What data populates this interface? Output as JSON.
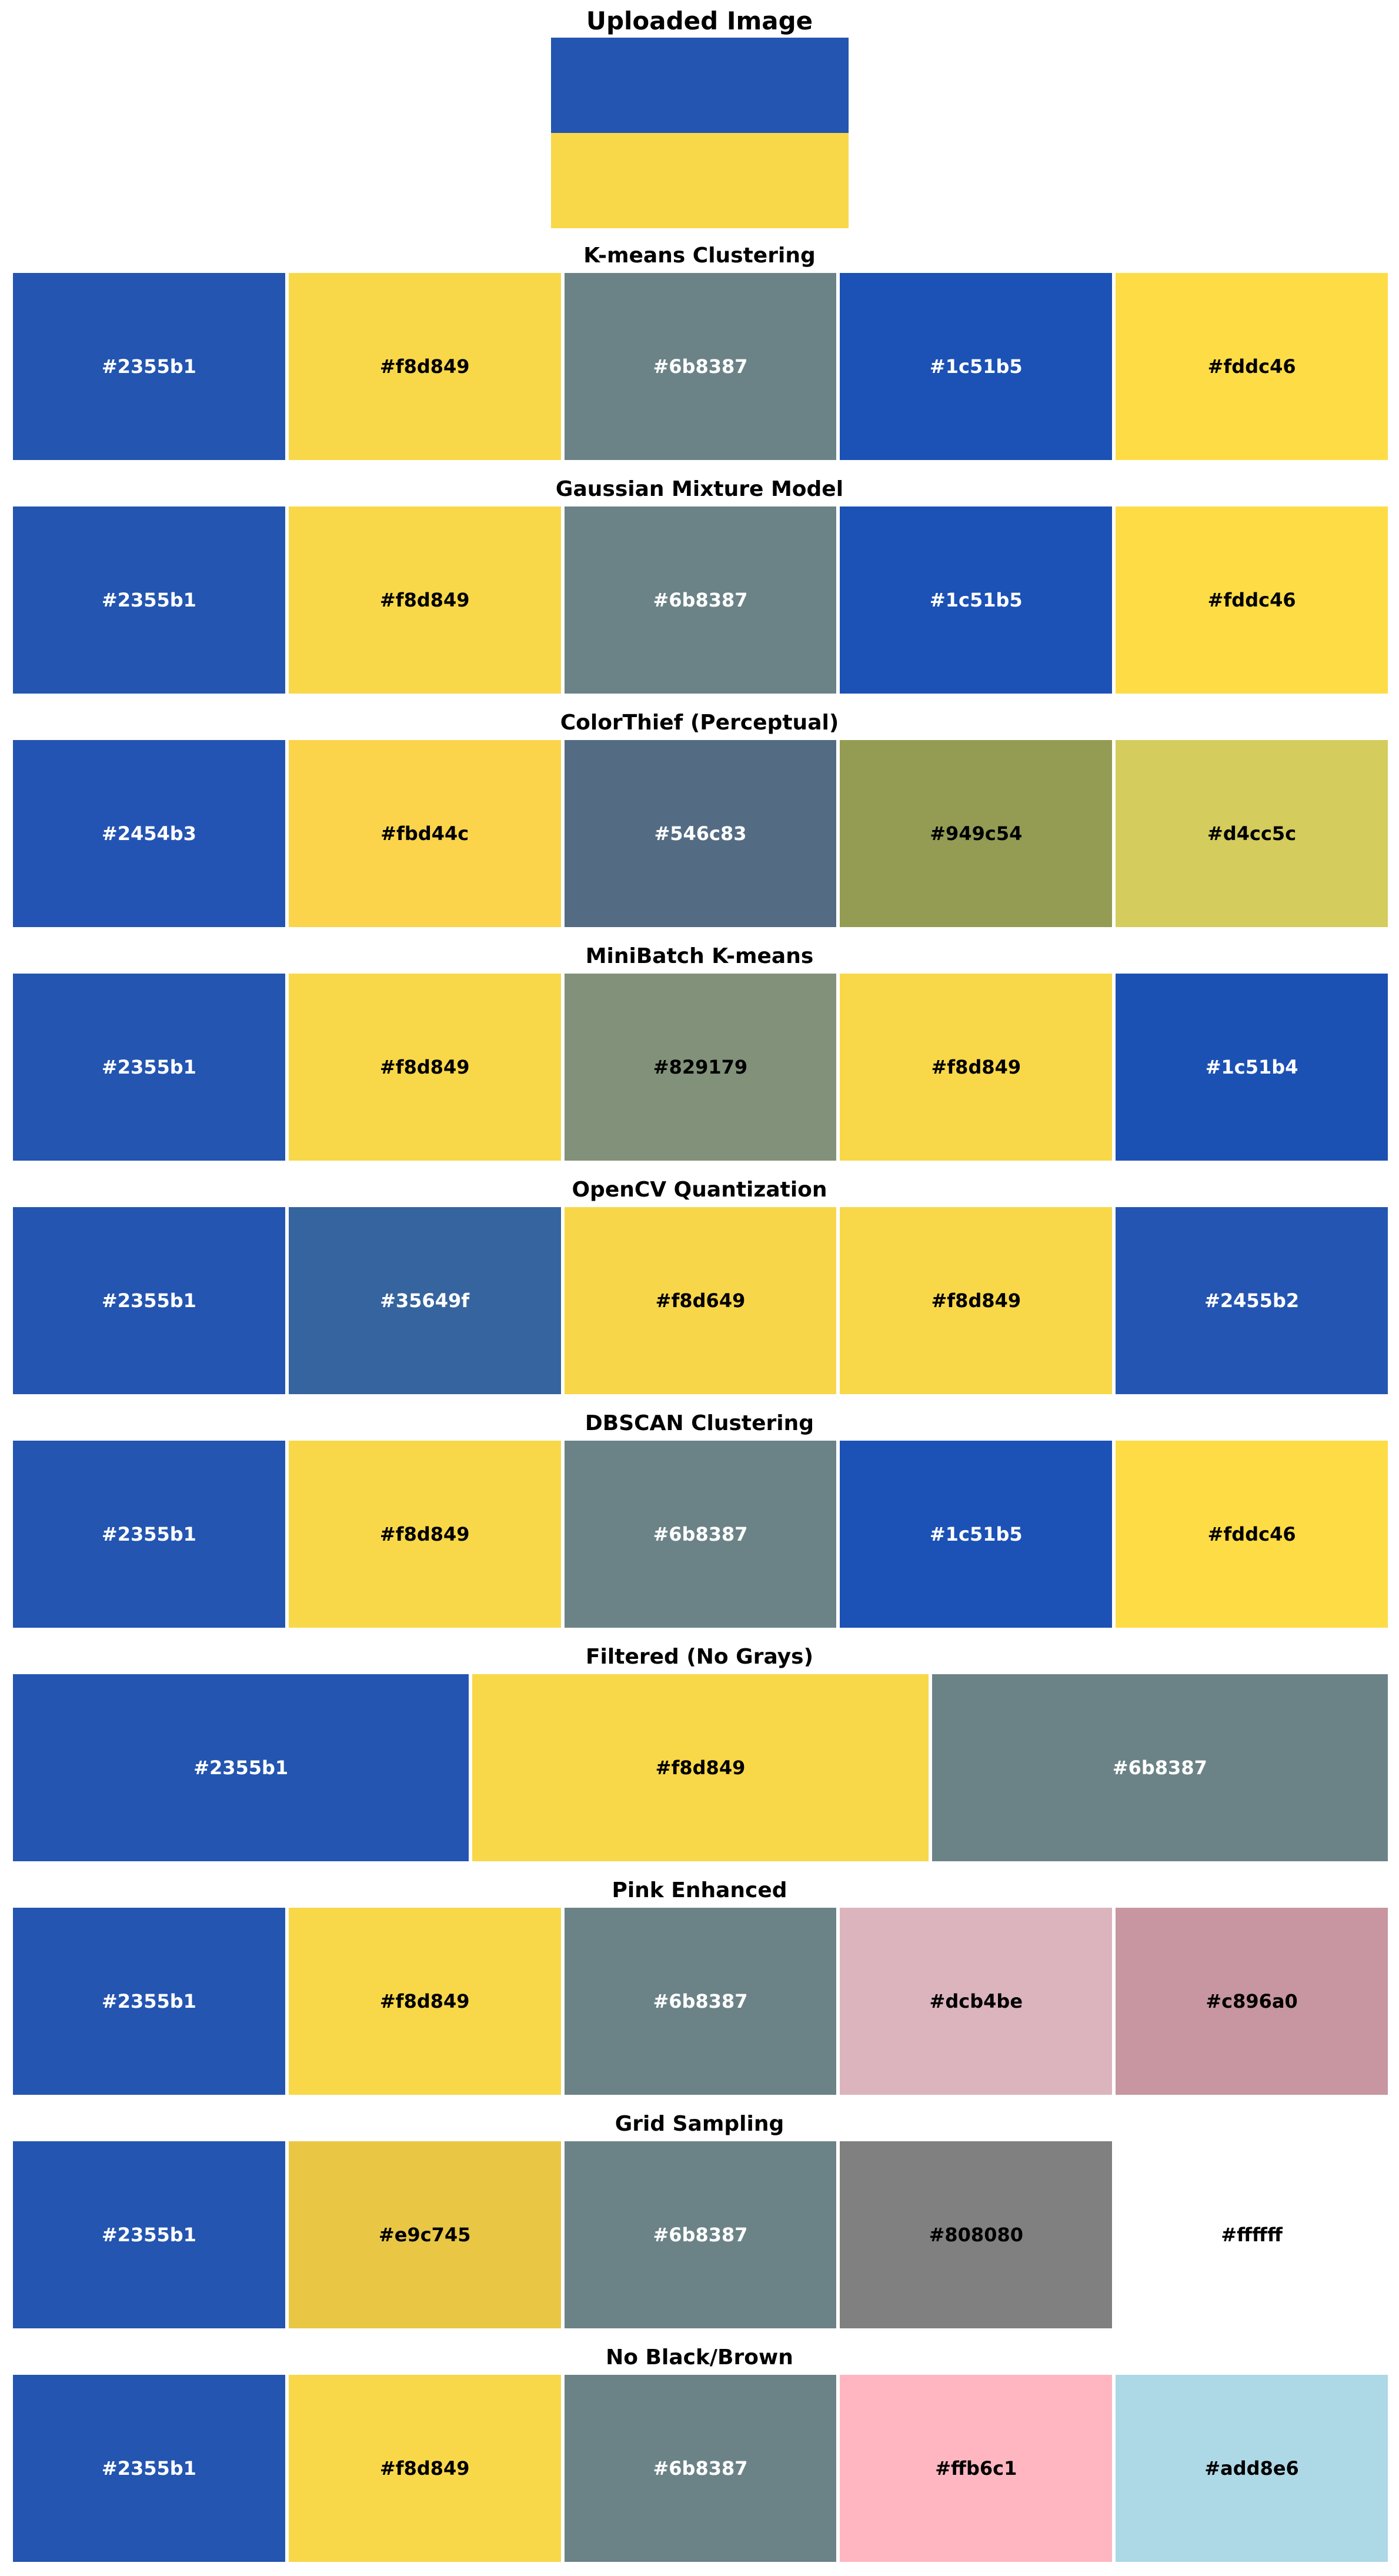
{
  "main_title": "Uploaded Image",
  "flag": {
    "top_color": "#2355b1",
    "bottom_color": "#f8d849"
  },
  "chart_data": {
    "type": "table",
    "title": "Uploaded Image",
    "sections": [
      {
        "title": "K-means Clustering",
        "swatches": [
          {
            "hex": "#2355b1",
            "label": "#2355b1",
            "text_color": "#ffffff"
          },
          {
            "hex": "#f8d849",
            "label": "#f8d849",
            "text_color": "#000000"
          },
          {
            "hex": "#6b8387",
            "label": "#6b8387",
            "text_color": "#ffffff"
          },
          {
            "hex": "#1c51b5",
            "label": "#1c51b5",
            "text_color": "#ffffff"
          },
          {
            "hex": "#fddc46",
            "label": "#fddc46",
            "text_color": "#000000"
          }
        ]
      },
      {
        "title": "Gaussian Mixture Model",
        "swatches": [
          {
            "hex": "#2355b1",
            "label": "#2355b1",
            "text_color": "#ffffff"
          },
          {
            "hex": "#f8d849",
            "label": "#f8d849",
            "text_color": "#000000"
          },
          {
            "hex": "#6b8387",
            "label": "#6b8387",
            "text_color": "#ffffff"
          },
          {
            "hex": "#1c51b5",
            "label": "#1c51b5",
            "text_color": "#ffffff"
          },
          {
            "hex": "#fddc46",
            "label": "#fddc46",
            "text_color": "#000000"
          }
        ]
      },
      {
        "title": "ColorThief (Perceptual)",
        "swatches": [
          {
            "hex": "#2454b3",
            "label": "#2454b3",
            "text_color": "#ffffff"
          },
          {
            "hex": "#fbd44c",
            "label": "#fbd44c",
            "text_color": "#000000"
          },
          {
            "hex": "#546c83",
            "label": "#546c83",
            "text_color": "#ffffff"
          },
          {
            "hex": "#949c54",
            "label": "#949c54",
            "text_color": "#000000"
          },
          {
            "hex": "#d4cc5c",
            "label": "#d4cc5c",
            "text_color": "#000000"
          }
        ]
      },
      {
        "title": "MiniBatch K-means",
        "swatches": [
          {
            "hex": "#2355b1",
            "label": "#2355b1",
            "text_color": "#ffffff"
          },
          {
            "hex": "#f8d849",
            "label": "#f8d849",
            "text_color": "#000000"
          },
          {
            "hex": "#829179",
            "label": "#829179",
            "text_color": "#000000"
          },
          {
            "hex": "#f8d849",
            "label": "#f8d849",
            "text_color": "#000000"
          },
          {
            "hex": "#1c51b4",
            "label": "#1c51b4",
            "text_color": "#ffffff"
          }
        ]
      },
      {
        "title": "OpenCV Quantization",
        "swatches": [
          {
            "hex": "#2355b1",
            "label": "#2355b1",
            "text_color": "#ffffff"
          },
          {
            "hex": "#35649f",
            "label": "#35649f",
            "text_color": "#ffffff"
          },
          {
            "hex": "#f8d649",
            "label": "#f8d649",
            "text_color": "#000000"
          },
          {
            "hex": "#f8d849",
            "label": "#f8d849",
            "text_color": "#000000"
          },
          {
            "hex": "#2455b2",
            "label": "#2455b2",
            "text_color": "#ffffff"
          }
        ]
      },
      {
        "title": "DBSCAN Clustering",
        "swatches": [
          {
            "hex": "#2355b1",
            "label": "#2355b1",
            "text_color": "#ffffff"
          },
          {
            "hex": "#f8d849",
            "label": "#f8d849",
            "text_color": "#000000"
          },
          {
            "hex": "#6b8387",
            "label": "#6b8387",
            "text_color": "#ffffff"
          },
          {
            "hex": "#1c51b5",
            "label": "#1c51b5",
            "text_color": "#ffffff"
          },
          {
            "hex": "#fddc46",
            "label": "#fddc46",
            "text_color": "#000000"
          }
        ]
      },
      {
        "title": "Filtered (No Grays)",
        "swatches": [
          {
            "hex": "#2355b1",
            "label": "#2355b1",
            "text_color": "#ffffff"
          },
          {
            "hex": "#f8d849",
            "label": "#f8d849",
            "text_color": "#000000"
          },
          {
            "hex": "#6b8387",
            "label": "#6b8387",
            "text_color": "#ffffff"
          }
        ]
      },
      {
        "title": "Pink Enhanced",
        "swatches": [
          {
            "hex": "#2355b1",
            "label": "#2355b1",
            "text_color": "#ffffff"
          },
          {
            "hex": "#f8d849",
            "label": "#f8d849",
            "text_color": "#000000"
          },
          {
            "hex": "#6b8387",
            "label": "#6b8387",
            "text_color": "#ffffff"
          },
          {
            "hex": "#dcb4be",
            "label": "#dcb4be",
            "text_color": "#000000"
          },
          {
            "hex": "#c896a0",
            "label": "#c896a0",
            "text_color": "#000000"
          }
        ]
      },
      {
        "title": "Grid Sampling",
        "swatches": [
          {
            "hex": "#2355b1",
            "label": "#2355b1",
            "text_color": "#ffffff"
          },
          {
            "hex": "#e9c745",
            "label": "#e9c745",
            "text_color": "#000000"
          },
          {
            "hex": "#6b8387",
            "label": "#6b8387",
            "text_color": "#ffffff"
          },
          {
            "hex": "#808080",
            "label": "#808080",
            "text_color": "#000000"
          },
          {
            "hex": "#ffffff",
            "label": "#ffffff",
            "text_color": "#000000"
          }
        ]
      },
      {
        "title": "No Black/Brown",
        "swatches": [
          {
            "hex": "#2355b1",
            "label": "#2355b1",
            "text_color": "#ffffff"
          },
          {
            "hex": "#f8d849",
            "label": "#f8d849",
            "text_color": "#000000"
          },
          {
            "hex": "#6b8387",
            "label": "#6b8387",
            "text_color": "#ffffff"
          },
          {
            "hex": "#ffb6c1",
            "label": "#ffb6c1",
            "text_color": "#000000"
          },
          {
            "hex": "#add8e6",
            "label": "#add8e6",
            "text_color": "#000000"
          }
        ]
      }
    ]
  }
}
